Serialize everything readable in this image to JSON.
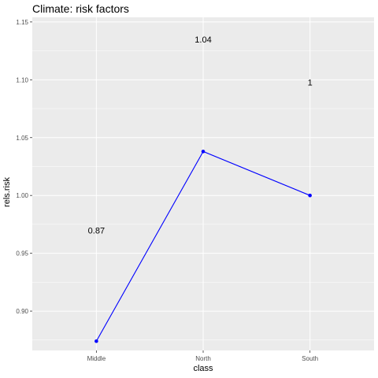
{
  "chart_data": {
    "type": "line",
    "title": "Climate: risk factors",
    "xlabel": "class",
    "ylabel": "rels.risk",
    "categories": [
      "Middle",
      "North",
      "South"
    ],
    "series": [
      {
        "values": [
          0.874,
          1.038,
          1.0
        ]
      }
    ],
    "data_labels": [
      "0.87",
      "1.04",
      "1"
    ],
    "ylim": [
      0.866,
      1.154
    ],
    "yticks": [
      0.9,
      0.95,
      1.0,
      1.05,
      1.1,
      1.15
    ],
    "ytick_labels": [
      "0.90",
      "0.95",
      "1.00",
      "1.05",
      "1.10",
      "1.15"
    ],
    "grid": true,
    "colors": {
      "line": "#0000ff",
      "panel": "#ebebeb",
      "grid": "#ffffff"
    }
  }
}
